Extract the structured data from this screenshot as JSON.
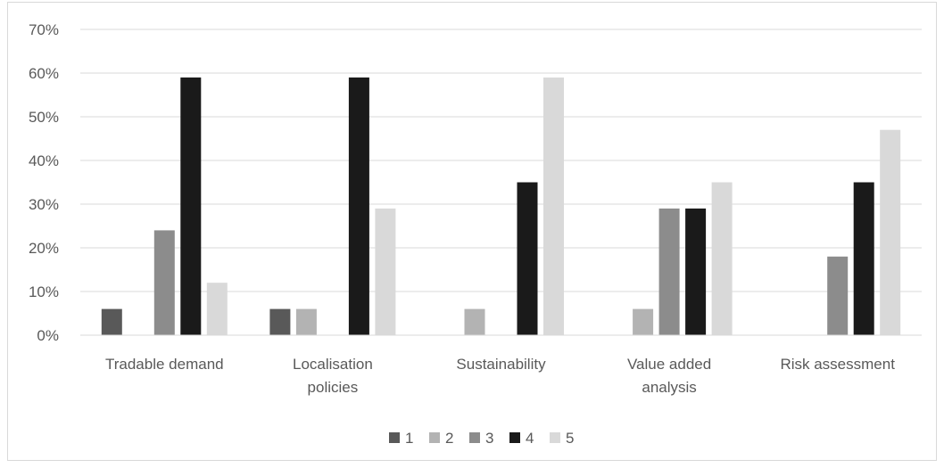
{
  "chart_data": {
    "type": "bar",
    "title": "",
    "xlabel": "",
    "ylabel": "",
    "categories": [
      [
        "Tradable demand"
      ],
      [
        "Localisation",
        "policies"
      ],
      [
        "Sustainability"
      ],
      [
        "Value added",
        "analysis"
      ],
      [
        "Risk assessment"
      ]
    ],
    "yticks": [
      "0%",
      "10%",
      "20%",
      "30%",
      "40%",
      "50%",
      "60%",
      "70%"
    ],
    "ylim": [
      0,
      70
    ],
    "grid": true,
    "legend_position": "bottom",
    "series": [
      {
        "name": "1",
        "color": "#595959",
        "values": [
          6,
          6,
          0,
          0,
          0
        ]
      },
      {
        "name": "2",
        "color": "#b3b3b3",
        "values": [
          0,
          6,
          6,
          6,
          0
        ]
      },
      {
        "name": "3",
        "color": "#8c8c8c",
        "values": [
          24,
          0,
          0,
          29,
          18
        ]
      },
      {
        "name": "4",
        "color": "#1a1a1a",
        "values": [
          59,
          59,
          35,
          29,
          35
        ]
      },
      {
        "name": "5",
        "color": "#d9d9d9",
        "values": [
          12,
          29,
          59,
          35,
          47
        ]
      }
    ]
  }
}
